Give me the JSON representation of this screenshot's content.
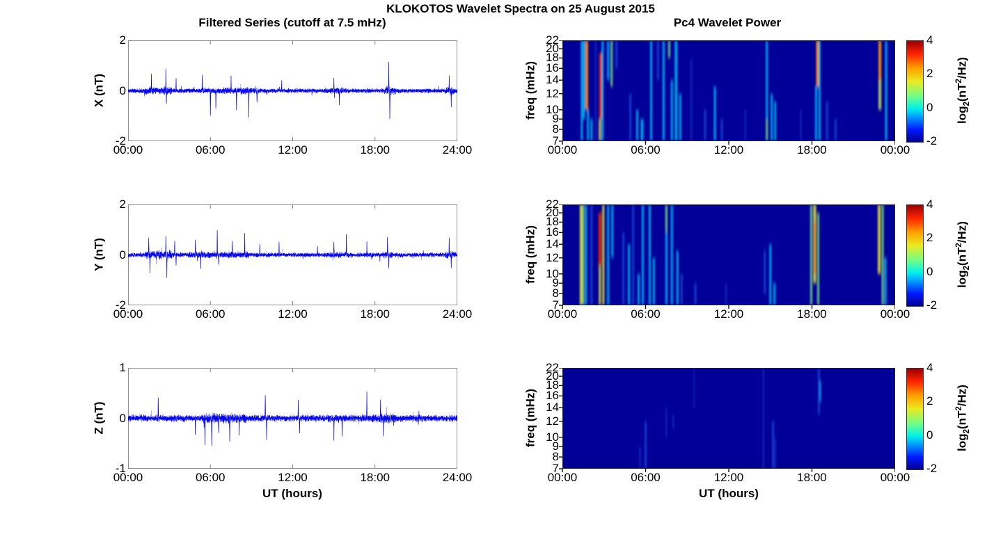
{
  "page": {
    "title": "KLOKOTOS Wavelet Spectra on 25 August 2015"
  },
  "left_column": {
    "title": "Filtered Series (cutoff at 7.5 mHz)",
    "xlabel": "UT (hours)",
    "xticks": [
      "00:00",
      "06:00",
      "12:00",
      "18:00",
      "24:00"
    ]
  },
  "right_column": {
    "title": "Pc4 Wavelet Power",
    "xlabel": "UT (hours)",
    "ylabel": "freq (mHz)",
    "xticks": [
      "00:00",
      "06:00",
      "12:00",
      "18:00",
      "00:00"
    ],
    "yticks": [
      22,
      20,
      18,
      16,
      14,
      12,
      10,
      9,
      8,
      7
    ],
    "freq_range_mhz": [
      7,
      22
    ],
    "freq_scale": "log",
    "colorbar": {
      "ticks": [
        4,
        2,
        0,
        -2
      ],
      "range": [
        -2,
        4
      ],
      "label_parts": {
        "prefix": "log",
        "sub": "2",
        "mid": "(nT",
        "sup": "2",
        "suffix": "/Hz)"
      }
    }
  },
  "colors": {
    "line": "#0000ee",
    "spectrogram_bg": "#000098",
    "frame": "#909090",
    "axis_tick_gray": "#808080",
    "axis_tick_black": "#111111",
    "intensity": {
      "faint": "#1e3fd0",
      "blue": "#2a62f0",
      "cyan": "#00ccff",
      "green": "#7fe87f",
      "yellow": "#e6e632",
      "orange": "#ff9000",
      "red": "#e82000"
    },
    "level_power_log2": {
      "faint": -1,
      "blue": 0,
      "cyan": 1,
      "green": 2,
      "yellow": 2.5,
      "orange": 3,
      "red": 4
    }
  },
  "chart_data": [
    {
      "id": "series-x",
      "type": "line",
      "ylabel": "X (nT)",
      "ylim": [
        -2,
        2
      ],
      "yticks": [
        2,
        0,
        -2
      ],
      "x_range_hours": [
        0,
        24
      ],
      "seed": 11,
      "noise_band": 0.12,
      "bursts": [
        {
          "t1": 1.2,
          "t2": 3.2,
          "amp": 0.2
        },
        {
          "t1": 5.4,
          "t2": 9.5,
          "amp": 0.17
        },
        {
          "t1": 14.7,
          "t2": 16.0,
          "amp": 0.16
        },
        {
          "t1": 18.7,
          "t2": 19.5,
          "amp": 0.24
        },
        {
          "t1": 23.1,
          "t2": 23.9,
          "amp": 0.18
        }
      ],
      "spikes": [
        {
          "t": 1.7,
          "a": 0.6
        },
        {
          "t": 2.75,
          "a": 0.8
        },
        {
          "t": 2.8,
          "a": -0.6
        },
        {
          "t": 3.5,
          "a": 0.45
        },
        {
          "t": 5.4,
          "a": 0.6
        },
        {
          "t": 6.0,
          "a": -1.0
        },
        {
          "t": 6.4,
          "a": -0.7
        },
        {
          "t": 7.5,
          "a": 0.55
        },
        {
          "t": 7.9,
          "a": -0.75
        },
        {
          "t": 8.8,
          "a": -1.0
        },
        {
          "t": 9.4,
          "a": -0.5
        },
        {
          "t": 11.2,
          "a": 0.45
        },
        {
          "t": 15.0,
          "a": 0.55
        },
        {
          "t": 15.4,
          "a": -0.55
        },
        {
          "t": 19.0,
          "a": 1.1
        },
        {
          "t": 19.07,
          "a": -1.05
        },
        {
          "t": 23.4,
          "a": 0.5
        },
        {
          "t": 23.55,
          "a": -0.65
        }
      ]
    },
    {
      "id": "series-y",
      "type": "line",
      "ylabel": "Y (nT)",
      "ylim": [
        -2,
        2
      ],
      "yticks": [
        2,
        0,
        -2
      ],
      "x_range_hours": [
        0,
        24
      ],
      "seed": 22,
      "noise_band": 0.12,
      "bursts": [
        {
          "t1": 1.2,
          "t2": 3.2,
          "amp": 0.22
        },
        {
          "t1": 4.4,
          "t2": 8.8,
          "amp": 0.17
        },
        {
          "t1": 14.7,
          "t2": 16.2,
          "amp": 0.16
        },
        {
          "t1": 18.6,
          "t2": 19.3,
          "amp": 0.18
        },
        {
          "t1": 23.1,
          "t2": 23.9,
          "amp": 0.18
        }
      ],
      "spikes": [
        {
          "t": 1.5,
          "a": 0.65
        },
        {
          "t": 1.6,
          "a": -0.6
        },
        {
          "t": 2.75,
          "a": 0.7
        },
        {
          "t": 2.82,
          "a": -0.8
        },
        {
          "t": 3.4,
          "a": 0.55
        },
        {
          "t": 3.5,
          "a": -0.45
        },
        {
          "t": 4.9,
          "a": 0.6
        },
        {
          "t": 5.3,
          "a": -0.5
        },
        {
          "t": 6.5,
          "a": 1.0
        },
        {
          "t": 6.6,
          "a": -0.45
        },
        {
          "t": 7.6,
          "a": 0.6
        },
        {
          "t": 8.5,
          "a": 0.85
        },
        {
          "t": 9.6,
          "a": 0.45
        },
        {
          "t": 11.0,
          "a": 0.55
        },
        {
          "t": 13.8,
          "a": 0.35
        },
        {
          "t": 15.0,
          "a": 0.6
        },
        {
          "t": 15.9,
          "a": 0.8
        },
        {
          "t": 17.4,
          "a": 0.45
        },
        {
          "t": 18.9,
          "a": 0.65
        },
        {
          "t": 19.0,
          "a": -0.6
        },
        {
          "t": 23.4,
          "a": 0.6
        },
        {
          "t": 23.55,
          "a": -0.5
        }
      ]
    },
    {
      "id": "series-z",
      "type": "line",
      "ylabel": "Z (nT)",
      "ylim": [
        -1,
        1
      ],
      "yticks": [
        1,
        0,
        -1
      ],
      "x_range_hours": [
        0,
        24
      ],
      "seed": 33,
      "noise_band": 0.09,
      "bursts": [
        {
          "t1": 5.4,
          "t2": 8.6,
          "amp": 0.13
        },
        {
          "t1": 14.5,
          "t2": 16.0,
          "amp": 0.11
        },
        {
          "t1": 17.8,
          "t2": 19.5,
          "amp": 0.12
        }
      ],
      "spikes": [
        {
          "t": 2.2,
          "a": 0.45
        },
        {
          "t": 4.9,
          "a": -0.35
        },
        {
          "t": 5.6,
          "a": -0.55
        },
        {
          "t": 6.1,
          "a": -0.5
        },
        {
          "t": 6.6,
          "a": -0.35
        },
        {
          "t": 7.4,
          "a": -0.4
        },
        {
          "t": 8.1,
          "a": -0.35
        },
        {
          "t": 10.0,
          "a": 0.5
        },
        {
          "t": 10.1,
          "a": -0.4
        },
        {
          "t": 12.4,
          "a": 0.35
        },
        {
          "t": 12.5,
          "a": -0.3
        },
        {
          "t": 15.0,
          "a": -0.45
        },
        {
          "t": 15.6,
          "a": -0.4
        },
        {
          "t": 17.4,
          "a": 0.55
        },
        {
          "t": 18.4,
          "a": 0.35
        },
        {
          "t": 18.6,
          "a": -0.35
        }
      ]
    },
    {
      "id": "wavelet-x",
      "type": "heatmap",
      "component": "X",
      "background_value_log2": -2,
      "events": [
        {
          "t": 1.4,
          "f": [
            7,
            22
          ],
          "level": "cyan"
        },
        {
          "t": 1.55,
          "f": [
            9,
            22
          ],
          "level": "cyan"
        },
        {
          "t": 1.75,
          "f": [
            10,
            22
          ],
          "level": "orange",
          "w": 4
        },
        {
          "t": 1.85,
          "f": [
            7,
            10
          ],
          "level": "cyan"
        },
        {
          "t": 2.1,
          "f": [
            7,
            9
          ],
          "level": "cyan"
        },
        {
          "t": 2.4,
          "f": [
            7,
            22
          ],
          "level": "faint"
        },
        {
          "t": 2.7,
          "f": [
            7,
            9
          ],
          "level": "yellow"
        },
        {
          "t": 2.75,
          "f": [
            9,
            19
          ],
          "level": "red",
          "w": 4
        },
        {
          "t": 2.9,
          "f": [
            7,
            22
          ],
          "level": "cyan"
        },
        {
          "t": 3.3,
          "f": [
            14,
            22
          ],
          "level": "cyan"
        },
        {
          "t": 3.55,
          "f": [
            13,
            22
          ],
          "level": "green"
        },
        {
          "t": 3.9,
          "f": [
            16,
            22
          ],
          "level": "blue"
        },
        {
          "t": 4.9,
          "f": [
            7,
            12
          ],
          "level": "blue"
        },
        {
          "t": 5.4,
          "f": [
            7,
            10
          ],
          "level": "cyan"
        },
        {
          "t": 5.75,
          "f": [
            7,
            9
          ],
          "level": "cyan",
          "w": 4
        },
        {
          "t": 6.4,
          "f": [
            7,
            22
          ],
          "level": "cyan"
        },
        {
          "t": 6.9,
          "f": [
            14,
            22
          ],
          "level": "blue"
        },
        {
          "t": 7.3,
          "f": [
            7,
            22
          ],
          "level": "cyan"
        },
        {
          "t": 7.7,
          "f": [
            18,
            22
          ],
          "level": "green"
        },
        {
          "t": 7.9,
          "f": [
            7,
            14
          ],
          "level": "cyan"
        },
        {
          "t": 8.2,
          "f": [
            7,
            22
          ],
          "level": "cyan",
          "w": 4
        },
        {
          "t": 8.5,
          "f": [
            7,
            12
          ],
          "level": "cyan"
        },
        {
          "t": 9.3,
          "f": [
            7,
            18
          ],
          "level": "faint"
        },
        {
          "t": 10.3,
          "f": [
            7,
            10
          ],
          "level": "blue"
        },
        {
          "t": 11.0,
          "f": [
            7,
            13
          ],
          "level": "cyan"
        },
        {
          "t": 11.5,
          "f": [
            7,
            9
          ],
          "level": "blue"
        },
        {
          "t": 13.2,
          "f": [
            7,
            10
          ],
          "level": "faint"
        },
        {
          "t": 14.75,
          "f": [
            9,
            22
          ],
          "level": "cyan"
        },
        {
          "t": 14.75,
          "f": [
            7,
            9
          ],
          "level": "green"
        },
        {
          "t": 15.1,
          "f": [
            7,
            12
          ],
          "level": "cyan"
        },
        {
          "t": 15.35,
          "f": [
            7,
            11
          ],
          "level": "cyan"
        },
        {
          "t": 17.2,
          "f": [
            7,
            10
          ],
          "level": "faint"
        },
        {
          "t": 18.3,
          "f": [
            7,
            13
          ],
          "level": "cyan"
        },
        {
          "t": 18.4,
          "f": [
            13,
            22
          ],
          "level": "orange",
          "w": 4
        },
        {
          "t": 18.55,
          "f": [
            7,
            22
          ],
          "level": "cyan"
        },
        {
          "t": 19.1,
          "f": [
            7,
            11
          ],
          "level": "blue"
        },
        {
          "t": 19.7,
          "f": [
            7,
            9
          ],
          "level": "blue"
        },
        {
          "t": 22.9,
          "f": [
            10,
            22
          ],
          "level": "orange",
          "w": 4
        },
        {
          "t": 22.9,
          "f": [
            10,
            14
          ],
          "level": "green"
        },
        {
          "t": 23.35,
          "f": [
            7,
            22
          ],
          "level": "cyan"
        }
      ]
    },
    {
      "id": "wavelet-y",
      "type": "heatmap",
      "component": "Y",
      "background_value_log2": -2,
      "events": [
        {
          "t": 1.35,
          "f": [
            7,
            22
          ],
          "level": "yellow",
          "w": 4
        },
        {
          "t": 1.5,
          "f": [
            7,
            22
          ],
          "level": "green"
        },
        {
          "t": 1.7,
          "f": [
            7,
            22
          ],
          "level": "cyan"
        },
        {
          "t": 2.1,
          "f": [
            7,
            22
          ],
          "level": "blue"
        },
        {
          "t": 2.7,
          "f": [
            11,
            20
          ],
          "level": "red",
          "w": 4
        },
        {
          "t": 2.7,
          "f": [
            7,
            11
          ],
          "level": "yellow"
        },
        {
          "t": 2.95,
          "f": [
            7,
            22
          ],
          "level": "yellow"
        },
        {
          "t": 3.3,
          "f": [
            7,
            22
          ],
          "level": "cyan"
        },
        {
          "t": 3.6,
          "f": [
            12,
            22
          ],
          "level": "cyan"
        },
        {
          "t": 4.4,
          "f": [
            7,
            16
          ],
          "level": "blue"
        },
        {
          "t": 4.8,
          "f": [
            7,
            14
          ],
          "level": "cyan"
        },
        {
          "t": 5.1,
          "f": [
            7,
            22
          ],
          "level": "blue"
        },
        {
          "t": 5.5,
          "f": [
            7,
            10
          ],
          "level": "cyan"
        },
        {
          "t": 5.8,
          "f": [
            7,
            22
          ],
          "level": "cyan"
        },
        {
          "t": 6.3,
          "f": [
            7,
            22
          ],
          "level": "cyan"
        },
        {
          "t": 6.6,
          "f": [
            7,
            12
          ],
          "level": "cyan"
        },
        {
          "t": 7.5,
          "f": [
            16,
            22
          ],
          "level": "green"
        },
        {
          "t": 7.5,
          "f": [
            7,
            16
          ],
          "level": "cyan"
        },
        {
          "t": 7.9,
          "f": [
            7,
            22
          ],
          "level": "cyan"
        },
        {
          "t": 8.3,
          "f": [
            7,
            13
          ],
          "level": "cyan"
        },
        {
          "t": 8.6,
          "f": [
            7,
            10
          ],
          "level": "blue"
        },
        {
          "t": 9.6,
          "f": [
            7,
            9
          ],
          "level": "blue"
        },
        {
          "t": 11.8,
          "f": [
            7,
            9
          ],
          "level": "faint"
        },
        {
          "t": 14.6,
          "f": [
            8,
            13
          ],
          "level": "blue"
        },
        {
          "t": 15.0,
          "f": [
            7,
            14
          ],
          "level": "cyan"
        },
        {
          "t": 15.3,
          "f": [
            7,
            9
          ],
          "level": "cyan"
        },
        {
          "t": 17.95,
          "f": [
            7,
            22
          ],
          "level": "green"
        },
        {
          "t": 18.2,
          "f": [
            9,
            22
          ],
          "level": "yellow",
          "w": 4
        },
        {
          "t": 18.2,
          "f": [
            10,
            18
          ],
          "level": "orange"
        },
        {
          "t": 18.45,
          "f": [
            7,
            20
          ],
          "level": "green"
        },
        {
          "t": 22.85,
          "f": [
            10,
            22
          ],
          "level": "yellow",
          "w": 4
        },
        {
          "t": 23.1,
          "f": [
            7,
            22
          ],
          "level": "green"
        },
        {
          "t": 23.3,
          "f": [
            7,
            12
          ],
          "level": "cyan"
        }
      ]
    },
    {
      "id": "wavelet-z",
      "type": "heatmap",
      "component": "Z",
      "background_value_log2": -2,
      "events": [
        {
          "t": 5.6,
          "f": [
            7,
            9
          ],
          "level": "faint"
        },
        {
          "t": 6.0,
          "f": [
            7,
            12
          ],
          "level": "blue"
        },
        {
          "t": 7.5,
          "f": [
            10,
            14
          ],
          "level": "faint"
        },
        {
          "t": 8.0,
          "f": [
            11,
            13
          ],
          "level": "faint"
        },
        {
          "t": 9.5,
          "f": [
            14,
            22
          ],
          "level": "faint",
          "w": 2
        },
        {
          "t": 14.5,
          "f": [
            7,
            22
          ],
          "level": "faint"
        },
        {
          "t": 15.2,
          "f": [
            7,
            12
          ],
          "level": "blue"
        },
        {
          "t": 15.35,
          "f": [
            7,
            10
          ],
          "level": "faint"
        },
        {
          "t": 18.5,
          "f": [
            13,
            22
          ],
          "level": "blue"
        },
        {
          "t": 18.6,
          "f": [
            15,
            19
          ],
          "level": "cyan",
          "w": 2
        }
      ]
    }
  ]
}
